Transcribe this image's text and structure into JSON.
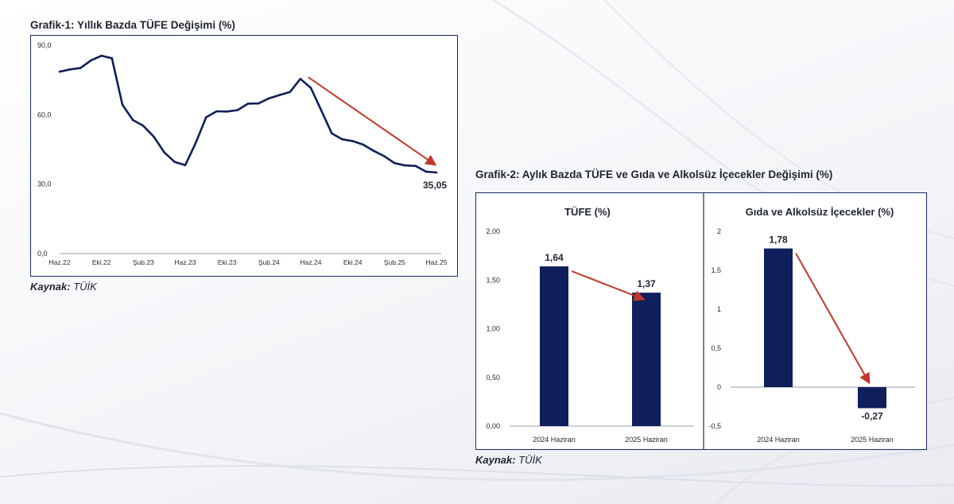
{
  "colors": {
    "series": "#0f1f5c",
    "arrow": "#c0392b",
    "axis": "#9aa0ad",
    "text": "#1f2430"
  },
  "chart_data": [
    {
      "id": "grafik1",
      "type": "line",
      "title": "Grafik-1: Yıllık Bazda TÜFE Değişimi (%)",
      "x_tick_labels": [
        "Haz.22",
        "Eki.22",
        "Şub.23",
        "Haz.23",
        "Eki.23",
        "Şub.24",
        "Haz.24",
        "Eki.24",
        "Şub.25",
        "Haz.25"
      ],
      "y_tick_labels": [
        "0,0",
        "30,0",
        "60,0",
        "90,0"
      ],
      "ylim": [
        0,
        90
      ],
      "values": [
        78.6,
        79.6,
        80.2,
        83.5,
        85.5,
        84.4,
        64.3,
        57.7,
        55.2,
        50.5,
        43.7,
        39.6,
        38.2,
        47.8,
        58.9,
        61.5,
        61.4,
        62.0,
        64.8,
        64.9,
        67.1,
        68.5,
        69.8,
        75.5,
        71.6,
        61.8,
        51.97,
        49.4,
        48.6,
        47.1,
        44.4,
        42.1,
        39.1,
        38.1,
        37.9,
        35.4,
        35.05
      ],
      "last_label": "35,05",
      "source_label": "Kaynak:",
      "source_text": "TÜİK"
    },
    {
      "id": "grafik2",
      "type": "bar",
      "title": "Grafik-2: Aylık Bazda TÜFE ve Gıda ve Alkolsüz İçecekler Değişimi (%)",
      "source_label": "Kaynak:",
      "source_text": "TÜİK",
      "panels": [
        {
          "id": "tufe",
          "title": "TÜFE (%)",
          "categories": [
            "2024 Haziran",
            "2025 Haziran"
          ],
          "values": [
            1.64,
            1.37
          ],
          "value_labels": [
            "1,64",
            "1,37"
          ],
          "ylim": [
            0,
            2
          ],
          "y_tick_values": [
            0,
            0.5,
            1,
            1.5,
            2
          ],
          "y_tick_labels": [
            "0,00",
            "0,50",
            "1,00",
            "1,50",
            "2,00"
          ]
        },
        {
          "id": "gida",
          "title": "Gıda ve Alkolsüz İçecekler (%)",
          "categories": [
            "2024 Haziran",
            "2025 Haziran"
          ],
          "values": [
            1.78,
            -0.27
          ],
          "value_labels": [
            "1,78",
            "-0,27"
          ],
          "ylim": [
            -0.5,
            2
          ],
          "y_tick_values": [
            -0.5,
            0,
            0.5,
            1,
            1.5,
            2
          ],
          "y_tick_labels": [
            "-0,5",
            "0",
            "0,5",
            "1",
            "1,5",
            "2"
          ]
        }
      ]
    }
  ]
}
